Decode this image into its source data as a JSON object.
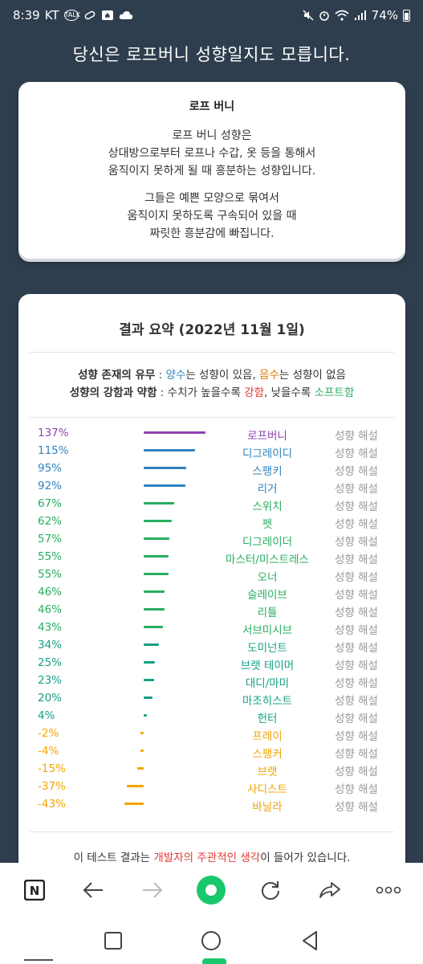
{
  "status_bar": {
    "time": "8:39",
    "carrier": "KT",
    "talk_badge": "TALK",
    "battery": "74%"
  },
  "page": {
    "title": "당신은 로프버니 성향일지도 모릅니다."
  },
  "description_card": {
    "title": "로프 버니",
    "paragraph1": [
      "로프 버니 성향은",
      "상대방으로부터 로프나 수갑, 옷 등을 통해서",
      "움직이지 못하게 될 때 흥분하는 성향입니다."
    ],
    "paragraph2": [
      "그들은 예쁜 모양으로 묶여서",
      "움직이지 못하도록 구속되어 있을 때",
      "짜릿한 흥분감에 빠집니다."
    ]
  },
  "summary": {
    "title": "결과 요약 (2022년 11월 1일)",
    "legend": {
      "line1_label": "성향 존재의 유무",
      "line1_sep": " : ",
      "positive": "양수",
      "line1_mid": "는 성향이 있음, ",
      "negative": "음수",
      "line1_end": "는 성향이 없음",
      "line2_label": "성향의 강함과 약함",
      "line2_sep": " : 수치가 높을수록 ",
      "strong": "강함",
      "line2_mid": ", 낮을수록 ",
      "soft": "소프트함"
    },
    "explain_label": "성향 해설",
    "rows": [
      {
        "pct": "137%",
        "value": 137,
        "name": "로프버니",
        "color": "#8e44ad"
      },
      {
        "pct": "115%",
        "value": 115,
        "name": "디그레이디",
        "color": "#2f84bd"
      },
      {
        "pct": "95%",
        "value": 95,
        "name": "스팽키",
        "color": "#2f84bd"
      },
      {
        "pct": "92%",
        "value": 92,
        "name": "리거",
        "color": "#2f84bd"
      },
      {
        "pct": "67%",
        "value": 67,
        "name": "스위치",
        "color": "#27ae60"
      },
      {
        "pct": "62%",
        "value": 62,
        "name": "펫",
        "color": "#27ae60"
      },
      {
        "pct": "57%",
        "value": 57,
        "name": "디그레이더",
        "color": "#27ae60"
      },
      {
        "pct": "55%",
        "value": 55,
        "name": "마스터/미스트레스",
        "color": "#27ae60"
      },
      {
        "pct": "55%",
        "value": 55,
        "name": "오너",
        "color": "#27ae60"
      },
      {
        "pct": "46%",
        "value": 46,
        "name": "슬레이브",
        "color": "#27ae60"
      },
      {
        "pct": "46%",
        "value": 46,
        "name": "리틀",
        "color": "#27ae60"
      },
      {
        "pct": "43%",
        "value": 43,
        "name": "서브미시브",
        "color": "#27ae60"
      },
      {
        "pct": "34%",
        "value": 34,
        "name": "도미넌트",
        "color": "#16a085"
      },
      {
        "pct": "25%",
        "value": 25,
        "name": "브랫 테이머",
        "color": "#16a085"
      },
      {
        "pct": "23%",
        "value": 23,
        "name": "대디/마미",
        "color": "#16a085"
      },
      {
        "pct": "20%",
        "value": 20,
        "name": "마조히스트",
        "color": "#16a085"
      },
      {
        "pct": "4%",
        "value": 4,
        "name": "헌터",
        "color": "#16a085"
      },
      {
        "pct": "-2%",
        "value": -2,
        "name": "프레이",
        "color": "#f0a500"
      },
      {
        "pct": "-4%",
        "value": -4,
        "name": "스팽커",
        "color": "#f0a500"
      },
      {
        "pct": "-15%",
        "value": -15,
        "name": "브랫",
        "color": "#f0a500"
      },
      {
        "pct": "-37%",
        "value": -37,
        "name": "사디스트",
        "color": "#f0a500"
      },
      {
        "pct": "-43%",
        "value": -43,
        "name": "바닐라",
        "color": "#f0a500"
      }
    ],
    "footer": {
      "prefix": "이 테스트 결과는 ",
      "highlight": "개발자의 주관적인 생각",
      "suffix": "이 들어가 있습니다."
    }
  },
  "browser_toolbar": {
    "logo_letter": "N"
  }
}
